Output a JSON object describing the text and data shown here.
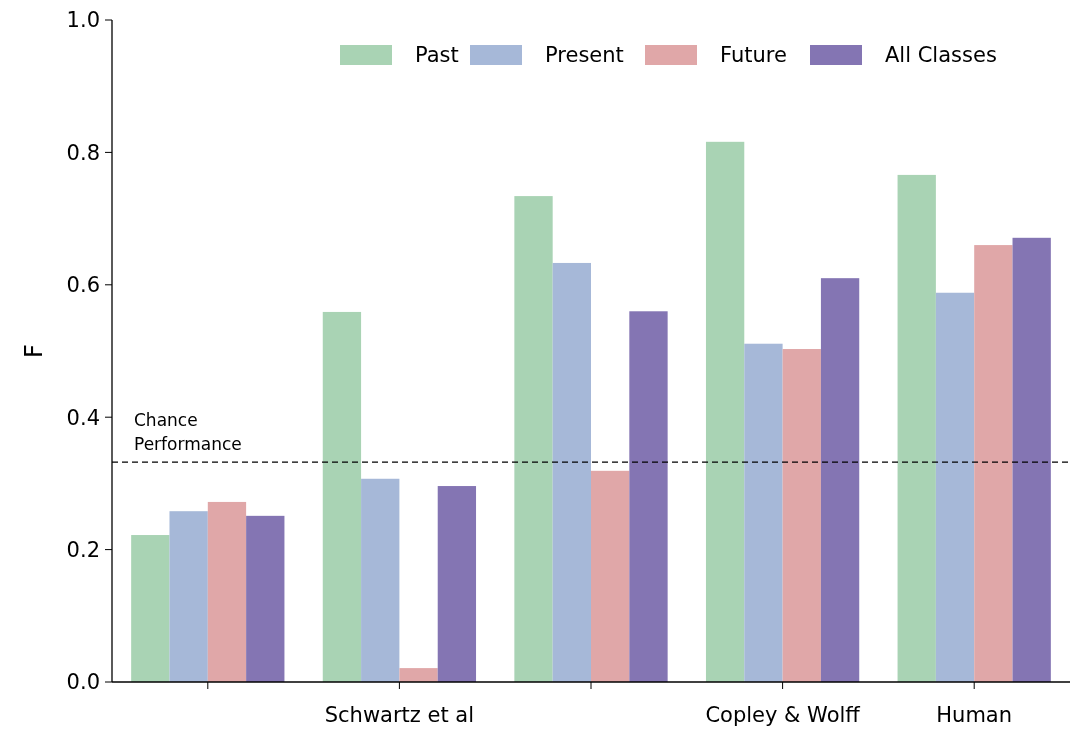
{
  "chart_data": {
    "type": "bar",
    "ylabel": "F",
    "categories": [
      null,
      "Schwartz et al",
      null,
      "Copley & Wolff",
      "Human"
    ],
    "series": [
      {
        "name": "Past",
        "color": "#a9d3b4",
        "values": [
          0.222,
          0.559,
          0.734,
          0.816,
          0.766
        ]
      },
      {
        "name": "Present",
        "color": "#a6b8d8",
        "values": [
          0.258,
          0.307,
          0.633,
          0.511,
          0.588
        ]
      },
      {
        "name": "Future",
        "color": "#e0a7a8",
        "values": [
          0.272,
          0.021,
          0.319,
          0.503,
          0.66
        ]
      },
      {
        "name": "All Classes",
        "color": "#8475b3",
        "values": [
          0.251,
          0.296,
          0.56,
          0.61,
          0.671
        ]
      }
    ],
    "ylim": [
      0,
      1
    ],
    "yticks": [
      {
        "value": 0,
        "label": "0.0"
      },
      0.2,
      0.4,
      0.6,
      0.8,
      {
        "value": 1,
        "label": "1.0"
      }
    ],
    "ref_lines": [
      {
        "axis": "y",
        "value": 0.332,
        "label": "Chance Performance",
        "color": "#000000",
        "line_style": "dashed"
      }
    ],
    "grid": false,
    "legend": "top right"
  }
}
